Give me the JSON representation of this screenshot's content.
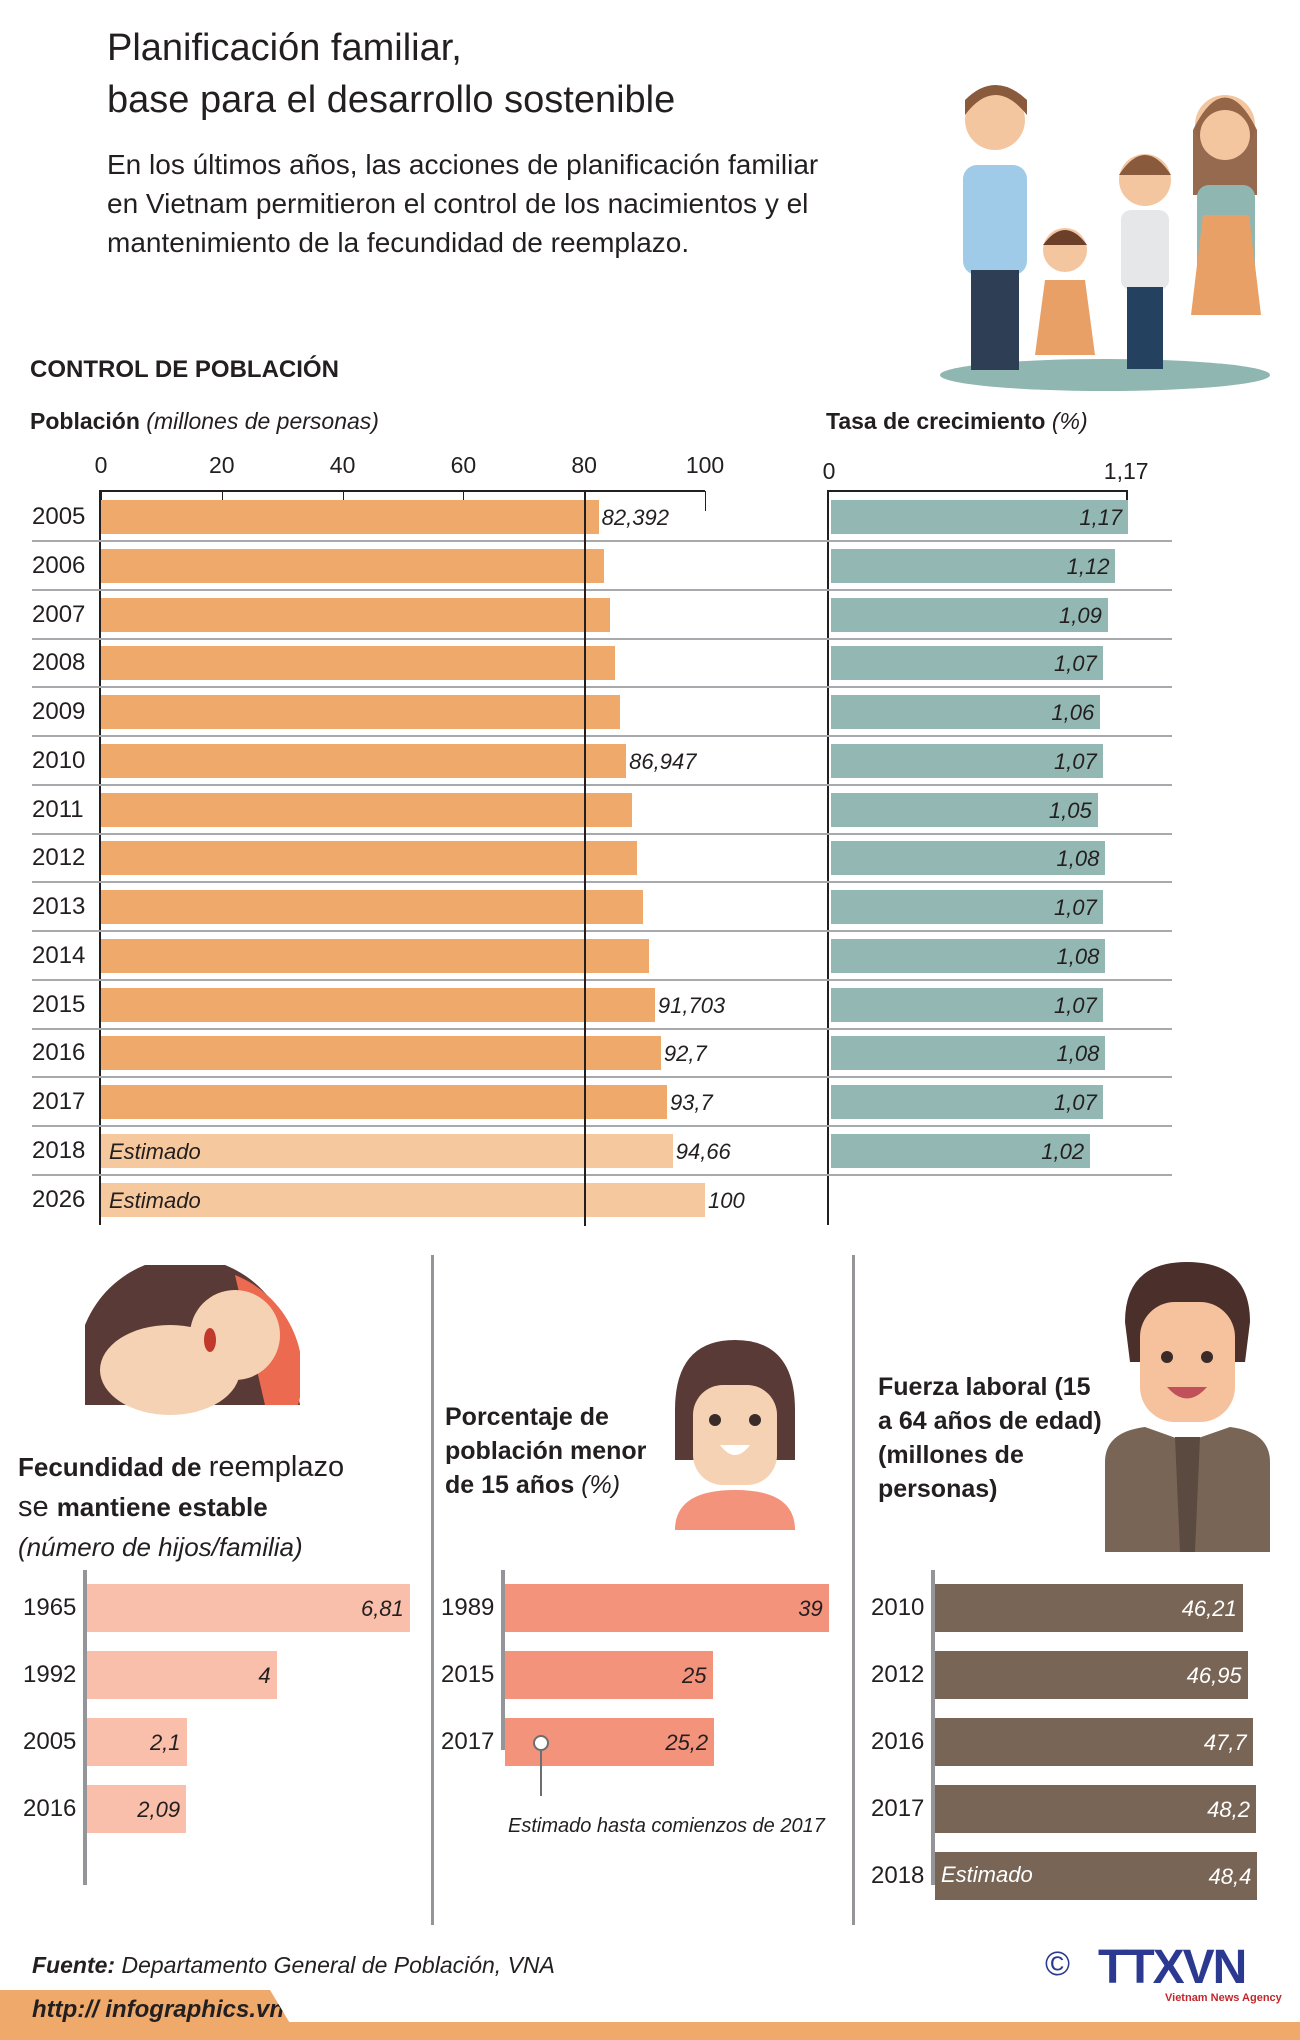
{
  "header": {
    "title_line1": "Planificación familiar,",
    "title_line2": "base para el desarrollo sostenible",
    "intro": "En los últimos años, las acciones de planificación familiar en Vietnam permitieron el control de los nacimientos y el mantenimiento de la fecundidad de reemplazo."
  },
  "section_title": "CONTROL DE POBLACIÓN",
  "colors": {
    "population": "#eea96b",
    "estimate": "#f6c89e",
    "growth": "#93b8b3",
    "fertility": "#f9bfaa",
    "under15": "#f4937b",
    "labor": "#786556"
  },
  "chart_data": [
    {
      "type": "bar",
      "title": "Población",
      "subtitle": "(millones de personas)",
      "xlim": [
        0,
        100
      ],
      "ticks": [
        "0",
        "20",
        "40",
        "60",
        "80",
        "100"
      ],
      "reference_line": 80,
      "categories": [
        "2005",
        "2006",
        "2007",
        "2008",
        "2009",
        "2010",
        "2011",
        "2012",
        "2013",
        "2014",
        "2015",
        "2016",
        "2017",
        "2018",
        "2026"
      ],
      "values": [
        82.392,
        83.3,
        84.2,
        85.1,
        86.0,
        86.947,
        87.9,
        88.8,
        89.7,
        90.7,
        91.703,
        92.7,
        93.7,
        94.66,
        100
      ],
      "labels": [
        "82,392",
        "",
        "",
        "",
        "",
        "86,947",
        "",
        "",
        "",
        "",
        "91,703",
        "92,7",
        "93,7",
        "94,66",
        "100"
      ],
      "estimated": [
        false,
        false,
        false,
        false,
        false,
        false,
        false,
        false,
        false,
        false,
        false,
        false,
        false,
        true,
        true
      ],
      "estimate_label": "Estimado"
    },
    {
      "type": "bar",
      "title": "Tasa de crecimiento",
      "subtitle": "(%)",
      "xlim": [
        0,
        1.17
      ],
      "ticks": [
        "0",
        "1,17"
      ],
      "categories": [
        "2005",
        "2006",
        "2007",
        "2008",
        "2009",
        "2010",
        "2011",
        "2012",
        "2013",
        "2014",
        "2015",
        "2016",
        "2017",
        "2018"
      ],
      "values": [
        1.17,
        1.12,
        1.09,
        1.07,
        1.06,
        1.07,
        1.05,
        1.08,
        1.07,
        1.08,
        1.07,
        1.08,
        1.07,
        1.02
      ],
      "labels": [
        "1,17",
        "1,12",
        "1,09",
        "1,07",
        "1,06",
        "1,07",
        "1,05",
        "1,08",
        "1,07",
        "1,08",
        "1,07",
        "1,08",
        "1,07",
        "1,02"
      ]
    },
    {
      "type": "bar",
      "title_bold1": "Fecundidad de ",
      "title_normal1": "reemplazo",
      "title_normal2": "se ",
      "title_bold2": "mantiene estable",
      "subtitle": "(número de hijos/familia)",
      "categories": [
        "1965",
        "1992",
        "2005",
        "2016"
      ],
      "values": [
        6.81,
        4,
        2.1,
        2.09
      ],
      "labels": [
        "6,81",
        "4",
        "2,1",
        "2,09"
      ]
    },
    {
      "type": "bar",
      "title": "Porcentaje de población menor de 15 años",
      "subtitle": "(%)",
      "categories": [
        "1989",
        "2015",
        "2017"
      ],
      "values": [
        39,
        25,
        25.2
      ],
      "labels": [
        "39",
        "25",
        "25,2"
      ],
      "annotation": "Estimado hasta comienzos de 2017"
    },
    {
      "type": "bar",
      "title": "Fuerza laboral (15 a 64 años de edad) (millones de personas)",
      "categories": [
        "2010",
        "2012",
        "2016",
        "2017",
        "2018"
      ],
      "values": [
        46.21,
        46.95,
        47.7,
        48.2,
        48.4
      ],
      "labels": [
        "46,21",
        "46,95",
        "47,7",
        "48,2",
        "48,4"
      ],
      "estimate_label": "Estimado"
    }
  ],
  "footer": {
    "source_label": "Fuente:",
    "source": "Departamento General de Población, VNA",
    "url": "http:// infographics.vn",
    "copyright": "©",
    "logo": "TTXVN",
    "agency": "Vietnam News Agency"
  }
}
